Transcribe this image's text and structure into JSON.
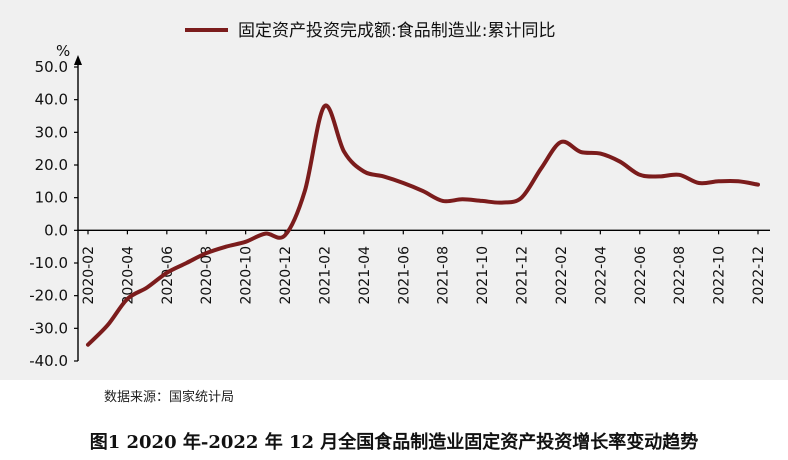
{
  "chart_data": {
    "type": "line",
    "legend": {
      "label": "固定资产投资完成额:食品制造业:累计同比",
      "placement": "top-center"
    },
    "y_unit": "%",
    "ylim": [
      -40,
      50
    ],
    "yticks": [
      "-40.0",
      "-30.0",
      "-20.0",
      "-10.0",
      "0.0",
      "10.0",
      "20.0",
      "30.0",
      "40.0",
      "50.0"
    ],
    "xtick_labels": [
      "2020-02",
      "2020-04",
      "2020-06",
      "2020-08",
      "2020-10",
      "2020-12",
      "2021-02",
      "2021-04",
      "2021-06",
      "2021-08",
      "2021-10",
      "2021-12",
      "2022-02",
      "2022-04",
      "2022-06",
      "2022-08",
      "2022-10",
      "2022-12"
    ],
    "grid": false,
    "series": [
      {
        "name": "固定资产投资完成额:食品制造业:累计同比",
        "color": "#7b1c1c",
        "x": [
          "2020-02",
          "2020-03",
          "2020-04",
          "2020-05",
          "2020-06",
          "2020-07",
          "2020-08",
          "2020-09",
          "2020-10",
          "2020-11",
          "2020-12",
          "2021-01",
          "2021-02",
          "2021-03",
          "2021-04",
          "2021-05",
          "2021-06",
          "2021-07",
          "2021-08",
          "2021-09",
          "2021-10",
          "2021-11",
          "2021-12",
          "2022-01",
          "2022-02",
          "2022-03",
          "2022-04",
          "2022-05",
          "2022-06",
          "2022-07",
          "2022-08",
          "2022-09",
          "2022-10",
          "2022-11",
          "2022-12"
        ],
        "values": [
          -35,
          -29,
          -21,
          -17.5,
          -13,
          -10,
          -7,
          -5,
          -3.5,
          -1,
          -1.5,
          12,
          38,
          24,
          18,
          16.5,
          14.5,
          12,
          9,
          9.5,
          9,
          8.5,
          10,
          19,
          27,
          24,
          23.5,
          21,
          17,
          16.5,
          17,
          14.5,
          15,
          15,
          14
        ]
      }
    ]
  },
  "source_note": "数据来源：国家统计局",
  "caption": "图1 2020 年-2022 年 12 月全国食品制造业固定资产投资增长率变动趋势",
  "colors": {
    "plot_background": "#f0f0f0",
    "axis": "#000000"
  }
}
